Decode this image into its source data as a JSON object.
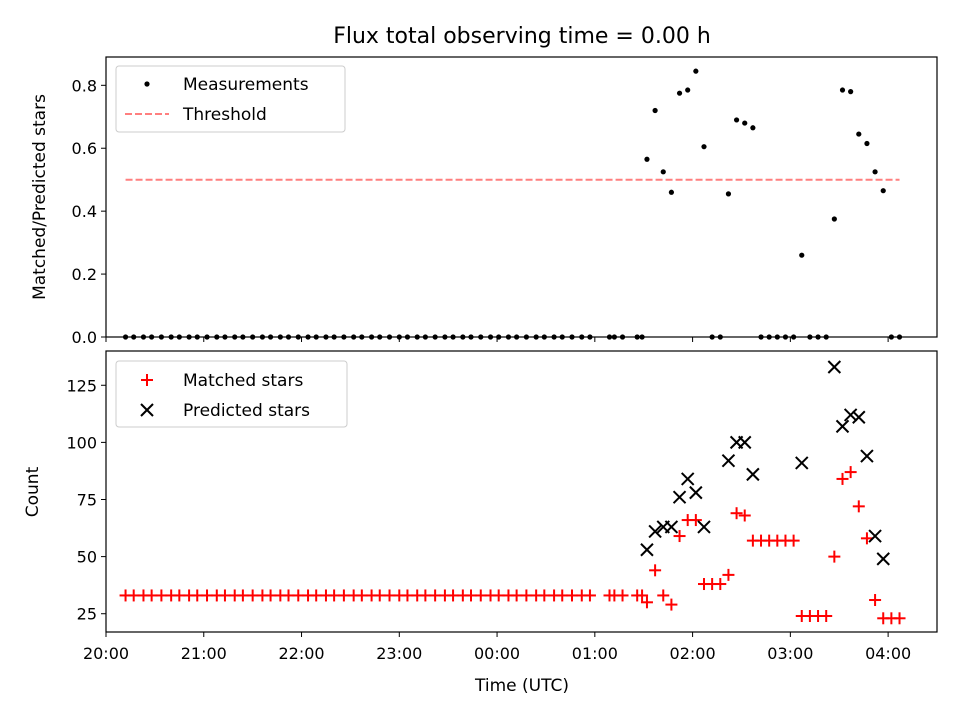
{
  "chart_data": [
    {
      "type": "scatter",
      "title": "Flux total observing time = 0.00 h",
      "xlabel": "",
      "ylabel": "Matched/Predicted stars",
      "xlim": [
        "20:00",
        "04:30"
      ],
      "ylim": [
        0,
        0.89
      ],
      "yticks": [
        0.0,
        0.2,
        0.4,
        0.6,
        0.8
      ],
      "ytick_labels": [
        "0.0",
        "0.2",
        "0.4",
        "0.6",
        "0.8"
      ],
      "legend_position": "top-left",
      "grid": false,
      "series": [
        {
          "name": "Measurements",
          "marker": "dot",
          "color": "#000000",
          "points": [
            [
              "20:12",
              0
            ],
            [
              "20:17",
              0
            ],
            [
              "20:23",
              0
            ],
            [
              "20:28",
              0
            ],
            [
              "20:34",
              0
            ],
            [
              "20:40",
              0
            ],
            [
              "20:45",
              0
            ],
            [
              "20:51",
              0
            ],
            [
              "20:56",
              0
            ],
            [
              "21:02",
              0
            ],
            [
              "21:08",
              0
            ],
            [
              "21:13",
              0
            ],
            [
              "21:19",
              0
            ],
            [
              "21:24",
              0
            ],
            [
              "21:30",
              0
            ],
            [
              "21:36",
              0
            ],
            [
              "21:41",
              0
            ],
            [
              "21:47",
              0
            ],
            [
              "21:52",
              0
            ],
            [
              "21:58",
              0
            ],
            [
              "22:04",
              0
            ],
            [
              "22:09",
              0
            ],
            [
              "22:15",
              0
            ],
            [
              "22:20",
              0
            ],
            [
              "22:26",
              0
            ],
            [
              "22:32",
              0
            ],
            [
              "22:37",
              0
            ],
            [
              "22:43",
              0
            ],
            [
              "22:48",
              0
            ],
            [
              "22:54",
              0
            ],
            [
              "23:00",
              0
            ],
            [
              "23:05",
              0
            ],
            [
              "23:11",
              0
            ],
            [
              "23:16",
              0
            ],
            [
              "23:22",
              0
            ],
            [
              "23:28",
              0
            ],
            [
              "23:33",
              0
            ],
            [
              "23:39",
              0
            ],
            [
              "23:44",
              0
            ],
            [
              "23:50",
              0
            ],
            [
              "23:56",
              0
            ],
            [
              "00:01",
              0
            ],
            [
              "00:07",
              0
            ],
            [
              "00:12",
              0
            ],
            [
              "00:18",
              0
            ],
            [
              "00:24",
              0
            ],
            [
              "00:29",
              0
            ],
            [
              "00:35",
              0
            ],
            [
              "00:40",
              0
            ],
            [
              "00:46",
              0
            ],
            [
              "00:52",
              0
            ],
            [
              "00:57",
              0
            ],
            [
              "01:09",
              0
            ],
            [
              "01:12",
              0
            ],
            [
              "01:17",
              0
            ],
            [
              "01:26",
              0
            ],
            [
              "01:29",
              0
            ],
            [
              "01:32",
              0.565
            ],
            [
              "01:37",
              0.72
            ],
            [
              "01:42",
              0.525
            ],
            [
              "01:47",
              0.46
            ],
            [
              "01:52",
              0.775
            ],
            [
              "01:57",
              0.785
            ],
            [
              "02:02",
              0.845
            ],
            [
              "02:07",
              0.605
            ],
            [
              "02:12",
              0
            ],
            [
              "02:17",
              0
            ],
            [
              "02:22",
              0.455
            ],
            [
              "02:27",
              0.69
            ],
            [
              "02:32",
              0.68
            ],
            [
              "02:37",
              0.665
            ],
            [
              "02:42",
              0
            ],
            [
              "02:47",
              0
            ],
            [
              "02:52",
              0
            ],
            [
              "02:57",
              0
            ],
            [
              "03:02",
              0
            ],
            [
              "03:07",
              0.26
            ],
            [
              "03:12",
              0
            ],
            [
              "03:17",
              0
            ],
            [
              "03:22",
              0
            ],
            [
              "03:27",
              0.375
            ],
            [
              "03:32",
              0.785
            ],
            [
              "03:37",
              0.78
            ],
            [
              "03:42",
              0.645
            ],
            [
              "03:47",
              0.615
            ],
            [
              "03:52",
              0.525
            ],
            [
              "03:57",
              0.465
            ],
            [
              "04:02",
              0
            ],
            [
              "04:07",
              0
            ]
          ]
        },
        {
          "name": "Threshold",
          "style": "dashed",
          "color": "#ff7f7f",
          "points": [
            [
              "20:12",
              0.5
            ],
            [
              "04:07",
              0.5
            ]
          ]
        }
      ]
    },
    {
      "type": "scatter",
      "title": "",
      "xlabel": "Time (UTC)",
      "ylabel": "Count",
      "xlim": [
        "20:00",
        "04:30"
      ],
      "xticks": [
        "20:00",
        "21:00",
        "22:00",
        "23:00",
        "00:00",
        "01:00",
        "02:00",
        "03:00",
        "04:00"
      ],
      "ylim": [
        17,
        140
      ],
      "yticks": [
        25,
        50,
        75,
        100,
        125
      ],
      "ytick_labels": [
        "25",
        "50",
        "75",
        "100",
        "125"
      ],
      "legend_position": "top-left",
      "grid": false,
      "series": [
        {
          "name": "Matched stars",
          "marker": "plus",
          "color": "#ff0000",
          "points": [
            [
              "20:12",
              33
            ],
            [
              "20:17",
              33
            ],
            [
              "20:23",
              33
            ],
            [
              "20:28",
              33
            ],
            [
              "20:34",
              33
            ],
            [
              "20:40",
              33
            ],
            [
              "20:45",
              33
            ],
            [
              "20:51",
              33
            ],
            [
              "20:56",
              33
            ],
            [
              "21:02",
              33
            ],
            [
              "21:08",
              33
            ],
            [
              "21:13",
              33
            ],
            [
              "21:19",
              33
            ],
            [
              "21:24",
              33
            ],
            [
              "21:30",
              33
            ],
            [
              "21:36",
              33
            ],
            [
              "21:41",
              33
            ],
            [
              "21:47",
              33
            ],
            [
              "21:52",
              33
            ],
            [
              "21:58",
              33
            ],
            [
              "22:04",
              33
            ],
            [
              "22:09",
              33
            ],
            [
              "22:15",
              33
            ],
            [
              "22:20",
              33
            ],
            [
              "22:26",
              33
            ],
            [
              "22:32",
              33
            ],
            [
              "22:37",
              33
            ],
            [
              "22:43",
              33
            ],
            [
              "22:48",
              33
            ],
            [
              "22:54",
              33
            ],
            [
              "23:00",
              33
            ],
            [
              "23:05",
              33
            ],
            [
              "23:11",
              33
            ],
            [
              "23:16",
              33
            ],
            [
              "23:22",
              33
            ],
            [
              "23:28",
              33
            ],
            [
              "23:33",
              33
            ],
            [
              "23:39",
              33
            ],
            [
              "23:44",
              33
            ],
            [
              "23:50",
              33
            ],
            [
              "23:56",
              33
            ],
            [
              "00:01",
              33
            ],
            [
              "00:07",
              33
            ],
            [
              "00:12",
              33
            ],
            [
              "00:18",
              33
            ],
            [
              "00:24",
              33
            ],
            [
              "00:29",
              33
            ],
            [
              "00:35",
              33
            ],
            [
              "00:40",
              33
            ],
            [
              "00:46",
              33
            ],
            [
              "00:52",
              33
            ],
            [
              "00:57",
              33
            ],
            [
              "01:09",
              33
            ],
            [
              "01:12",
              33
            ],
            [
              "01:17",
              33
            ],
            [
              "01:26",
              33
            ],
            [
              "01:29",
              33
            ],
            [
              "01:32",
              30
            ],
            [
              "01:37",
              44
            ],
            [
              "01:42",
              33
            ],
            [
              "01:47",
              29
            ],
            [
              "01:52",
              59
            ],
            [
              "01:57",
              66
            ],
            [
              "02:02",
              66
            ],
            [
              "02:07",
              38
            ],
            [
              "02:12",
              38
            ],
            [
              "02:17",
              38
            ],
            [
              "02:22",
              42
            ],
            [
              "02:27",
              69
            ],
            [
              "02:32",
              68
            ],
            [
              "02:37",
              57
            ],
            [
              "02:42",
              57
            ],
            [
              "02:47",
              57
            ],
            [
              "02:52",
              57
            ],
            [
              "02:57",
              57
            ],
            [
              "03:02",
              57
            ],
            [
              "03:07",
              24
            ],
            [
              "03:12",
              24
            ],
            [
              "03:17",
              24
            ],
            [
              "03:22",
              24
            ],
            [
              "03:27",
              50
            ],
            [
              "03:32",
              84
            ],
            [
              "03:37",
              87
            ],
            [
              "03:42",
              72
            ],
            [
              "03:47",
              58
            ],
            [
              "03:52",
              31
            ],
            [
              "03:57",
              23
            ],
            [
              "04:02",
              23
            ],
            [
              "04:07",
              23
            ]
          ]
        },
        {
          "name": "Predicted stars",
          "marker": "x",
          "color": "#000000",
          "points": [
            [
              "01:32",
              53
            ],
            [
              "01:37",
              61
            ],
            [
              "01:42",
              63
            ],
            [
              "01:47",
              63
            ],
            [
              "01:52",
              76
            ],
            [
              "01:57",
              84
            ],
            [
              "02:02",
              78
            ],
            [
              "02:07",
              63
            ],
            [
              "02:22",
              92
            ],
            [
              "02:27",
              100
            ],
            [
              "02:32",
              100
            ],
            [
              "02:37",
              86
            ],
            [
              "03:07",
              91
            ],
            [
              "03:27",
              133
            ],
            [
              "03:32",
              107
            ],
            [
              "03:37",
              112
            ],
            [
              "03:42",
              111
            ],
            [
              "03:47",
              94
            ],
            [
              "03:52",
              59
            ],
            [
              "03:57",
              49
            ]
          ]
        }
      ]
    }
  ]
}
